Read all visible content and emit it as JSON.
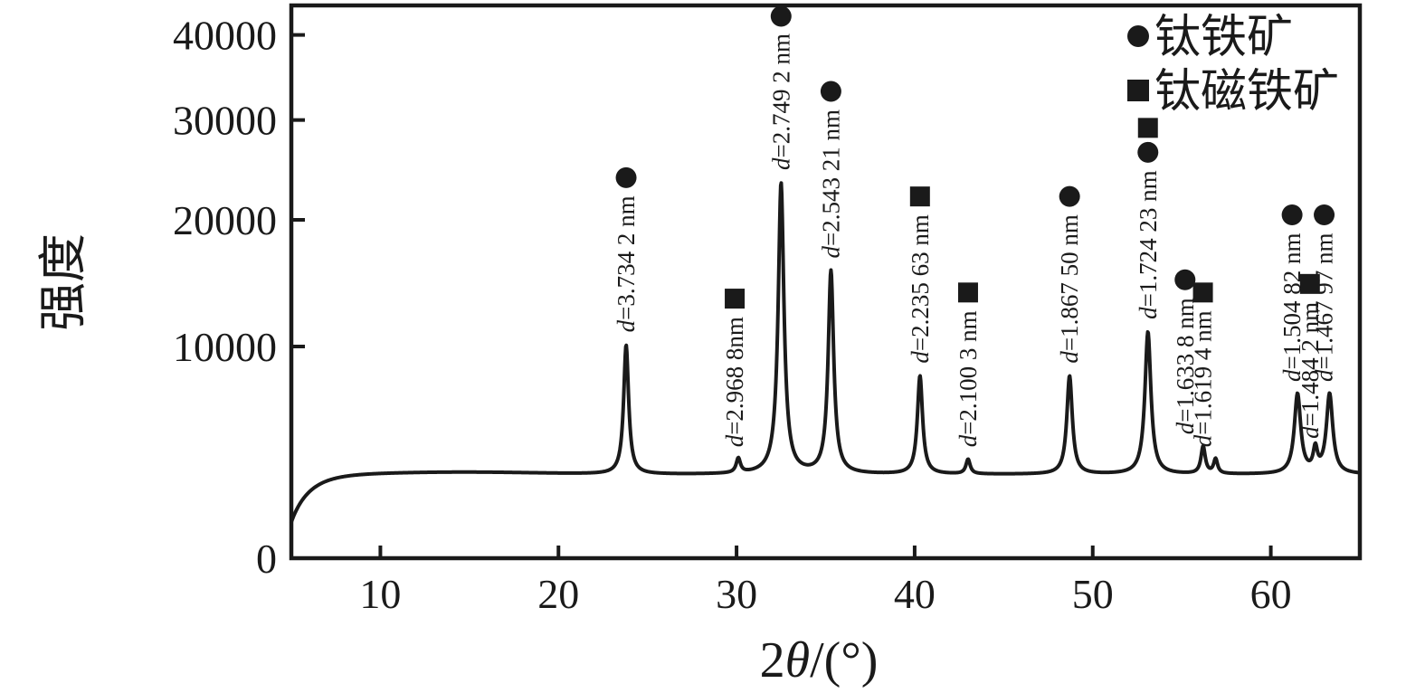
{
  "chart_data": {
    "type": "line",
    "xlabel": "2θ/(°)",
    "ylabel": "强度",
    "xlim": [
      5,
      65
    ],
    "ylim": [
      0,
      44000
    ],
    "x_ticks": [
      "10",
      "20",
      "30",
      "40",
      "50",
      "60"
    ],
    "x_tick_values": [
      10,
      20,
      30,
      40,
      50,
      60
    ],
    "y_ticks": [
      "0",
      "10000",
      "20000",
      "30000",
      "40000"
    ],
    "y_tick_values": [
      0,
      10000,
      20000,
      30000,
      40000
    ],
    "y_scale_note": "compressed (sqrt-like) intensity axis",
    "grid": false,
    "legend_position": "top-right-inside",
    "line_color": "#1a1a1a",
    "background_color": "#ffffff",
    "baseline_intensity": 2950,
    "baseline_start_intensity": 1100,
    "legend": [
      {
        "marker": "circle",
        "label": "钛铁矿"
      },
      {
        "marker": "square",
        "label": "钛磁铁矿"
      }
    ],
    "peaks": [
      {
        "two_theta": 23.8,
        "intensity": 10100,
        "fwhm": 0.3,
        "d_label": "d=3.734 2 nm",
        "markers": [
          "circle"
        ],
        "label_dx": 0
      },
      {
        "two_theta": 30.1,
        "intensity": 3600,
        "fwhm": 0.28,
        "d_label": "d=2.968 8nm",
        "markers": [
          "square"
        ],
        "label_dx": -4
      },
      {
        "two_theta": 32.5,
        "intensity": 23500,
        "fwhm": 0.32,
        "d_label": "d=2.749 2 nm",
        "markers": [
          "circle"
        ],
        "label_dx": 0
      },
      {
        "two_theta": 35.3,
        "intensity": 15600,
        "fwhm": 0.32,
        "d_label": "d=2.543 21 nm",
        "markers": [
          "circle"
        ],
        "label_dx": 0
      },
      {
        "two_theta": 40.3,
        "intensity": 8100,
        "fwhm": 0.32,
        "d_label": "d=2.235 63 nm",
        "markers": [
          "square"
        ],
        "label_dx": 0
      },
      {
        "two_theta": 43.0,
        "intensity": 3600,
        "fwhm": 0.28,
        "d_label": "d=2.100 3 nm",
        "markers": [
          "square"
        ],
        "label_dx": 0
      },
      {
        "two_theta": 48.7,
        "intensity": 8100,
        "fwhm": 0.34,
        "d_label": "d=1.867 50 nm",
        "markers": [
          "circle"
        ],
        "label_dx": 0
      },
      {
        "two_theta": 53.1,
        "intensity": 11000,
        "fwhm": 0.36,
        "d_label": "d=1.724 23 nm",
        "markers": [
          "circle",
          "square"
        ],
        "label_dx": 0
      },
      {
        "two_theta": 56.2,
        "intensity": 4200,
        "fwhm": 0.28,
        "d_label": "d=1.633 8 nm",
        "markers": [
          "circle"
        ],
        "label_dx": -20
      },
      {
        "two_theta": 56.9,
        "intensity": 3600,
        "fwhm": 0.26,
        "d_label": "d=1.619 4 nm",
        "markers": [
          "square"
        ],
        "label_dx": -14
      },
      {
        "two_theta": 61.5,
        "intensity": 7000,
        "fwhm": 0.4,
        "d_label": "d=1.504 82 nm",
        "markers": [
          "circle"
        ],
        "label_dx": -6
      },
      {
        "two_theta": 62.5,
        "intensity": 4000,
        "fwhm": 0.28,
        "d_label": "d=1.484 2 nm",
        "markers": [
          "square"
        ],
        "label_dx": -6
      },
      {
        "two_theta": 63.3,
        "intensity": 7000,
        "fwhm": 0.4,
        "d_label": "d=1.467 97 nm",
        "markers": [
          "circle"
        ],
        "label_dx": -6
      }
    ]
  }
}
